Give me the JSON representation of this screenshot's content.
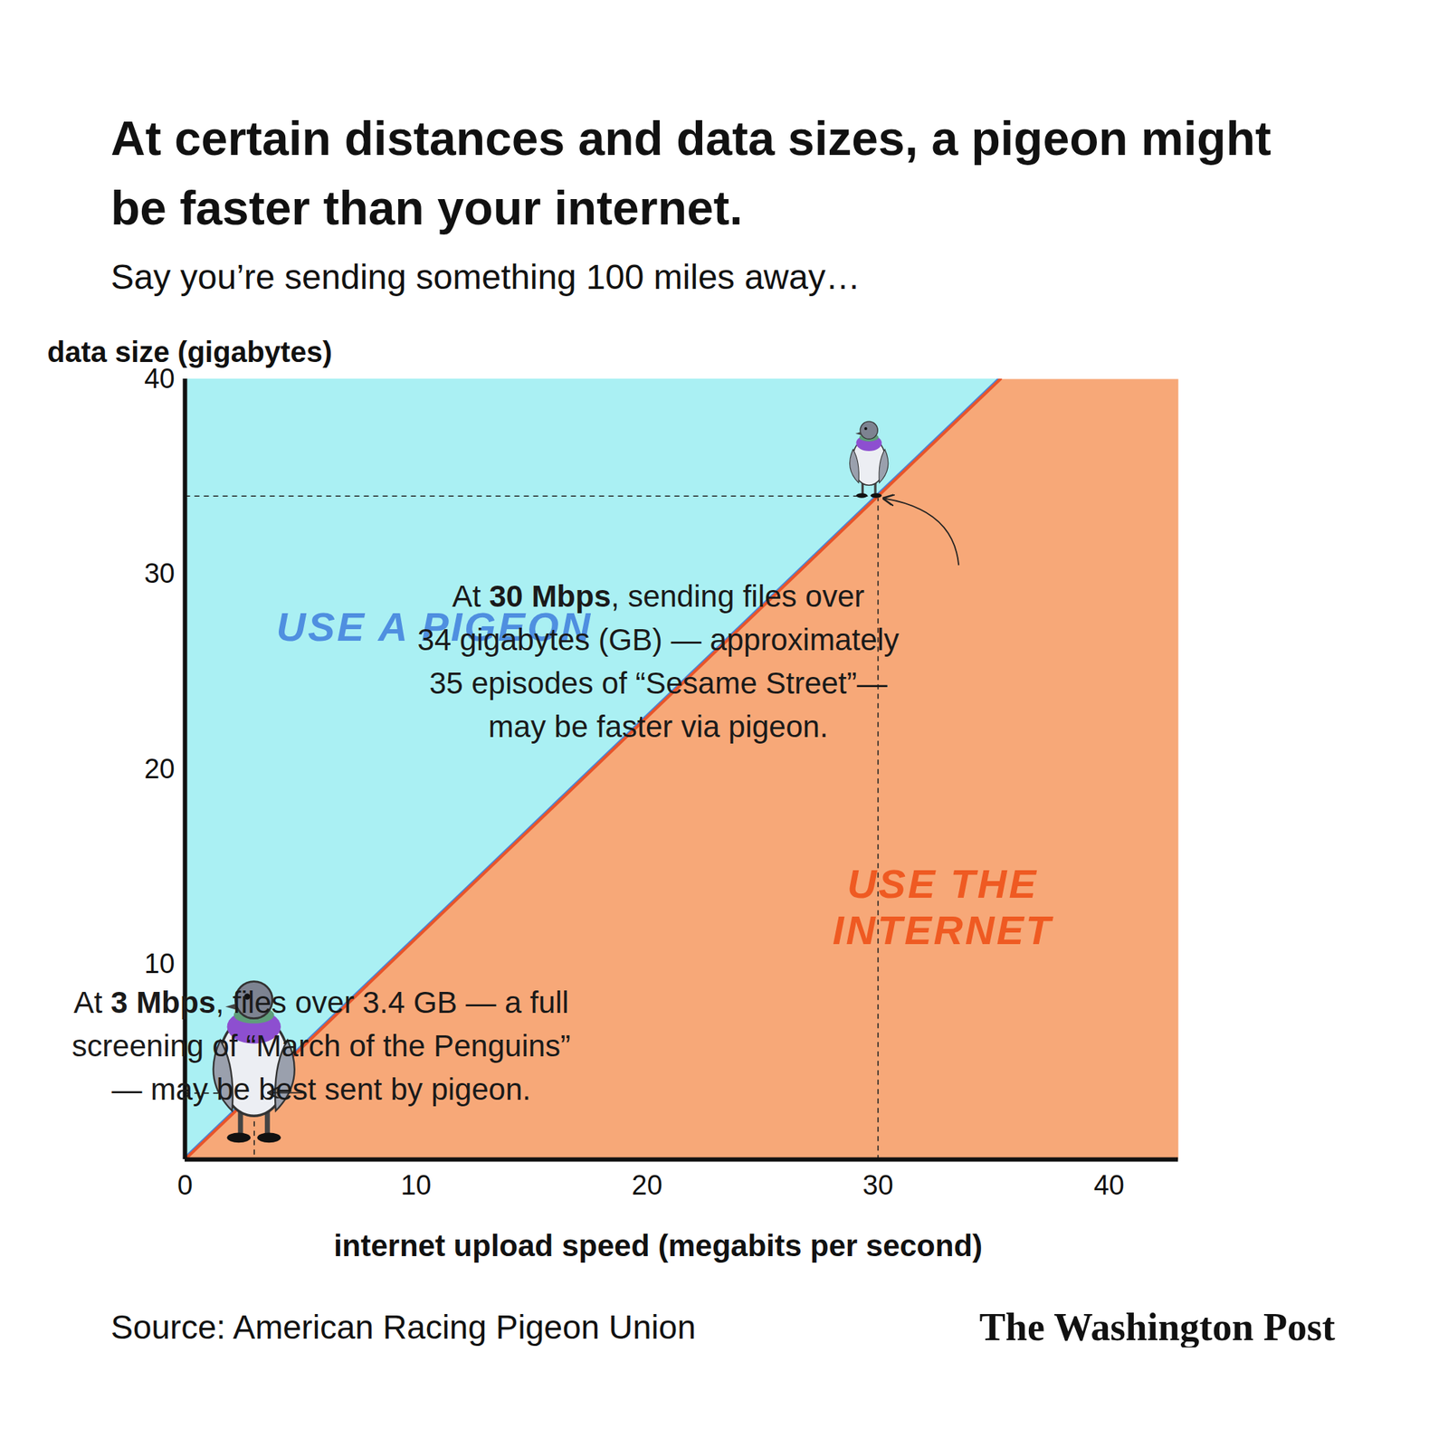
{
  "chart_data": {
    "type": "line",
    "title": "At certain distances and data sizes, a pigeon might be faster than your internet.",
    "subtitle": "Say you’re sending something 100 miles away…",
    "x_label": "internet upload speed (megabits per second)",
    "y_label": "data size (gigabytes)",
    "x": [
      0,
      3,
      30,
      35.3
    ],
    "values": [
      0,
      3.4,
      34,
      40
    ],
    "color": "#e8542a",
    "xlim": [
      0,
      43
    ],
    "ylim": [
      0,
      40
    ],
    "xticks": [
      0,
      10,
      20,
      30,
      40
    ],
    "yticks": [
      10,
      20,
      30,
      40
    ],
    "grid": false,
    "regions": [
      {
        "label": [
          "USE A PIGEON"
        ],
        "color": "#aaf0f3",
        "side": "above"
      },
      {
        "label": [
          "USE THE",
          "INTERNET"
        ],
        "color": "#f7a878",
        "side": "below"
      }
    ],
    "annotations": [
      {
        "x": 30,
        "y": 34,
        "bold": "30 Mbps",
        "lines": [
          "At 30 Mbps, sending files over",
          "34 gigabytes (GB) — approximately",
          "35 episodes of “Sesame Street”—",
          "may be faster via pigeon."
        ]
      },
      {
        "x": 3,
        "y": 3.4,
        "bold": "3 Mbps",
        "lines": [
          "At 3 Mbps, files over 3.4 GB — a full",
          "screening of “March of the Penguins”",
          "— may be best sent by pigeon."
        ]
      }
    ],
    "source": "Source: American Racing Pigeon Union",
    "credit": "The Washington Post"
  }
}
